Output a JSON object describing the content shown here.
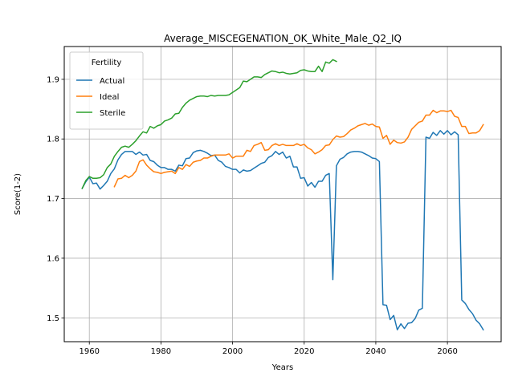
{
  "chart_data": {
    "type": "line",
    "title": "Average_MISCEGENATION_OK_White_Male_Q2_IQ",
    "xlabel": "Years",
    "ylabel": "Score(1-2)",
    "xlim": [
      1953,
      2075
    ],
    "ylim": [
      1.46,
      1.955
    ],
    "xticks": [
      1960,
      1980,
      2000,
      2020,
      2040,
      2060
    ],
    "yticks": [
      1.5,
      1.6,
      1.7,
      1.8,
      1.9
    ],
    "grid": true,
    "legend": {
      "title": "Fertility",
      "placement": "upper-left"
    },
    "series": [
      {
        "name": "Actual",
        "color": "#1f77b4",
        "x": [
          1958,
          1959,
          1960,
          1961,
          1962,
          1963,
          1964,
          1965,
          1966,
          1967,
          1968,
          1969,
          1970,
          1971,
          1972,
          1973,
          1974,
          1975,
          1976,
          1977,
          1978,
          1979,
          1980,
          1981,
          1982,
          1983,
          1984,
          1985,
          1986,
          1987,
          1988,
          1989,
          1990,
          1991,
          1992,
          1993,
          1994,
          1995,
          1996,
          1997,
          1998,
          1999,
          2000,
          2001,
          2002,
          2003,
          2004,
          2005,
          2006,
          2007,
          2008,
          2009,
          2010,
          2011,
          2012,
          2013,
          2014,
          2015,
          2016,
          2017,
          2018,
          2019,
          2020,
          2021,
          2022,
          2023,
          2024,
          2025,
          2026,
          2027,
          2028,
          2029,
          2030,
          2031,
          2032,
          2033,
          2034,
          2035,
          2036,
          2037,
          2038,
          2039,
          2040,
          2041,
          2042,
          2043,
          2044,
          2045,
          2046,
          2047,
          2048,
          2049,
          2050,
          2051,
          2052,
          2053,
          2054,
          2055,
          2056,
          2057,
          2058,
          2059,
          2060,
          2061,
          2062,
          2063,
          2064,
          2065,
          2066,
          2067,
          2068,
          2069,
          2070
        ],
        "y": [
          1.717,
          1.728,
          1.736,
          1.725,
          1.726,
          1.716,
          1.722,
          1.729,
          1.742,
          1.75,
          1.765,
          1.774,
          1.779,
          1.779,
          1.779,
          1.774,
          1.778,
          1.773,
          1.774,
          1.764,
          1.762,
          1.756,
          1.752,
          1.752,
          1.749,
          1.749,
          1.746,
          1.756,
          1.755,
          1.767,
          1.768,
          1.777,
          1.78,
          1.781,
          1.779,
          1.776,
          1.772,
          1.773,
          1.764,
          1.761,
          1.754,
          1.752,
          1.749,
          1.749,
          1.743,
          1.748,
          1.746,
          1.747,
          1.751,
          1.755,
          1.759,
          1.761,
          1.769,
          1.772,
          1.779,
          1.774,
          1.778,
          1.768,
          1.771,
          1.753,
          1.753,
          1.734,
          1.735,
          1.721,
          1.727,
          1.719,
          1.729,
          1.729,
          1.739,
          1.742,
          1.564,
          1.755,
          1.766,
          1.769,
          1.775,
          1.778,
          1.779,
          1.779,
          1.778,
          1.775,
          1.772,
          1.768,
          1.767,
          1.762,
          1.522,
          1.521,
          1.497,
          1.504,
          1.48,
          1.49,
          1.482,
          1.491,
          1.492,
          1.499,
          1.513,
          1.516,
          1.803,
          1.801,
          1.811,
          1.806,
          1.814,
          1.808,
          1.814,
          1.807,
          1.812,
          1.807,
          1.53,
          1.524,
          1.514,
          1.507,
          1.496,
          1.49,
          1.48
        ]
      },
      {
        "name": "Ideal",
        "color": "#ff7f0e",
        "x": [
          1967,
          1968,
          1969,
          1970,
          1971,
          1972,
          1973,
          1974,
          1975,
          1976,
          1977,
          1978,
          1979,
          1980,
          1981,
          1982,
          1983,
          1984,
          1985,
          1986,
          1987,
          1988,
          1989,
          1990,
          1991,
          1992,
          1993,
          1994,
          1995,
          1996,
          1997,
          1998,
          1999,
          2000,
          2001,
          2002,
          2003,
          2004,
          2005,
          2006,
          2007,
          2008,
          2009,
          2010,
          2011,
          2012,
          2013,
          2014,
          2015,
          2016,
          2017,
          2018,
          2019,
          2020,
          2021,
          2022,
          2023,
          2024,
          2025,
          2026,
          2027,
          2028,
          2029,
          2030,
          2031,
          2032,
          2033,
          2034,
          2035,
          2036,
          2037,
          2038,
          2039,
          2040,
          2041,
          2042,
          2043,
          2044,
          2045,
          2046,
          2047,
          2048,
          2049,
          2050,
          2051,
          2052,
          2053,
          2054,
          2055,
          2056,
          2057,
          2058,
          2059,
          2060,
          2061,
          2062,
          2063,
          2064,
          2065,
          2066,
          2067,
          2068,
          2069,
          2070
        ],
        "y": [
          1.72,
          1.733,
          1.734,
          1.739,
          1.735,
          1.739,
          1.746,
          1.762,
          1.765,
          1.756,
          1.75,
          1.745,
          1.744,
          1.742,
          1.744,
          1.745,
          1.746,
          1.742,
          1.752,
          1.749,
          1.757,
          1.754,
          1.761,
          1.763,
          1.764,
          1.768,
          1.768,
          1.771,
          1.773,
          1.773,
          1.773,
          1.773,
          1.775,
          1.768,
          1.771,
          1.771,
          1.771,
          1.781,
          1.779,
          1.789,
          1.791,
          1.794,
          1.781,
          1.782,
          1.789,
          1.792,
          1.789,
          1.791,
          1.789,
          1.789,
          1.789,
          1.792,
          1.789,
          1.791,
          1.785,
          1.782,
          1.775,
          1.778,
          1.782,
          1.789,
          1.79,
          1.799,
          1.805,
          1.803,
          1.804,
          1.809,
          1.815,
          1.818,
          1.822,
          1.824,
          1.826,
          1.823,
          1.825,
          1.821,
          1.82,
          1.801,
          1.806,
          1.791,
          1.798,
          1.794,
          1.793,
          1.795,
          1.803,
          1.816,
          1.822,
          1.828,
          1.83,
          1.84,
          1.84,
          1.848,
          1.844,
          1.847,
          1.847,
          1.846,
          1.848,
          1.838,
          1.836,
          1.821,
          1.821,
          1.809,
          1.81,
          1.81,
          1.814,
          1.824
        ]
      },
      {
        "name": "Sterile",
        "color": "#2ca02c",
        "x": [
          1958,
          1959,
          1960,
          1961,
          1962,
          1963,
          1964,
          1965,
          1966,
          1967,
          1968,
          1969,
          1970,
          1971,
          1972,
          1973,
          1974,
          1975,
          1976,
          1977,
          1978,
          1979,
          1980,
          1981,
          1982,
          1983,
          1984,
          1985,
          1986,
          1987,
          1988,
          1989,
          1990,
          1991,
          1992,
          1993,
          1994,
          1995,
          1996,
          1997,
          1998,
          1999,
          2000,
          2001,
          2002,
          2003,
          2004,
          2005,
          2006,
          2007,
          2008,
          2009,
          2010,
          2011,
          2012,
          2013,
          2014,
          2015,
          2016,
          2017,
          2018,
          2019,
          2020,
          2021,
          2022,
          2023,
          2024,
          2025,
          2026,
          2027,
          2028,
          2029
        ],
        "y": [
          1.717,
          1.73,
          1.737,
          1.734,
          1.734,
          1.735,
          1.74,
          1.752,
          1.758,
          1.771,
          1.779,
          1.786,
          1.788,
          1.786,
          1.791,
          1.797,
          1.805,
          1.812,
          1.81,
          1.821,
          1.818,
          1.822,
          1.824,
          1.83,
          1.832,
          1.835,
          1.842,
          1.843,
          1.853,
          1.86,
          1.865,
          1.868,
          1.871,
          1.872,
          1.872,
          1.871,
          1.873,
          1.872,
          1.873,
          1.873,
          1.873,
          1.874,
          1.878,
          1.882,
          1.886,
          1.897,
          1.896,
          1.9,
          1.904,
          1.904,
          1.903,
          1.908,
          1.911,
          1.914,
          1.913,
          1.911,
          1.912,
          1.91,
          1.909,
          1.91,
          1.911,
          1.915,
          1.916,
          1.914,
          1.913,
          1.913,
          1.922,
          1.913,
          1.929,
          1.927,
          1.933,
          1.93
        ]
      }
    ]
  }
}
